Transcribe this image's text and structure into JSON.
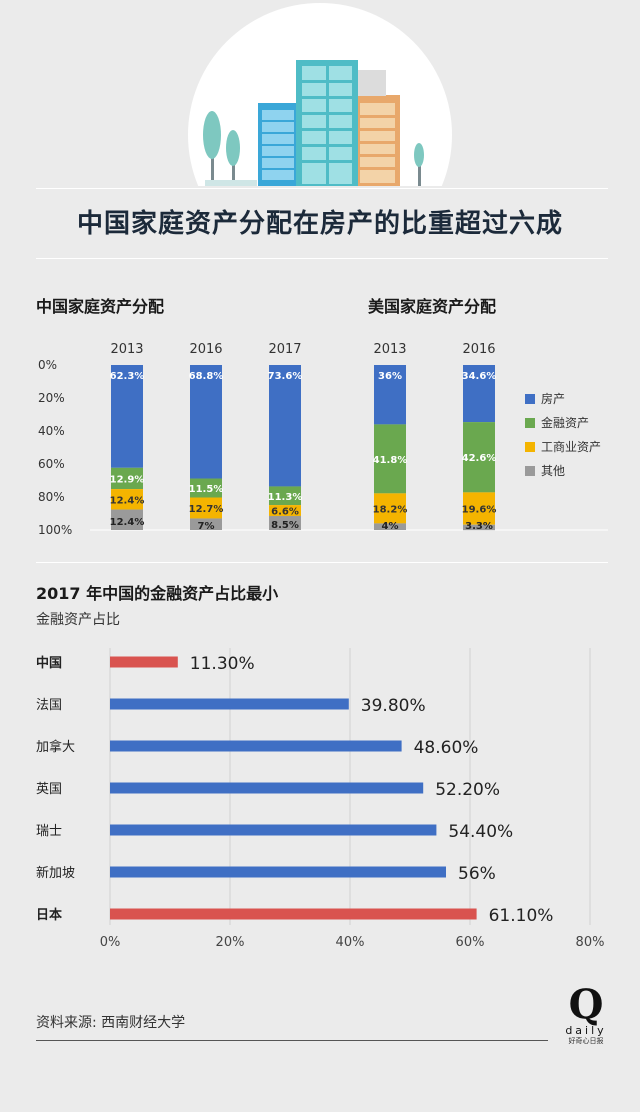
{
  "header": {
    "title": "中国家庭资产分配在房产的比重超过六成"
  },
  "stacked_section": {
    "china_title": "中国家庭资产分配",
    "us_title": "美国家庭资产分配"
  },
  "bar_section": {
    "title": "2017 年中国的金融资产占比最小",
    "subtitle": "金融资产占比"
  },
  "footer": {
    "source": "资料来源: 西南财经大学"
  },
  "logo": {
    "letter": "Q",
    "word": "daily",
    "tagline": "好奇心日报"
  },
  "colors": {
    "house": "#3f6fc4",
    "financial": "#6aa84f",
    "business": "#f4b400",
    "other": "#9a9a9a",
    "highlight": "#d9534f",
    "bar": "#3f6fc4"
  },
  "chart_data": [
    {
      "type": "bar",
      "stacked": true,
      "y_tick_labels": [
        "0%",
        "20%",
        "40%",
        "60%",
        "80%",
        "100%"
      ],
      "ylim": [
        0,
        100
      ],
      "legend_position": "right",
      "legend": [
        "房产",
        "金融资产",
        "工商业资产",
        "其他"
      ],
      "groups": [
        {
          "name": "中国家庭资产分配",
          "categories": [
            "2013",
            "2016",
            "2017"
          ],
          "series": [
            {
              "name": "房产",
              "values": [
                62.3,
                68.8,
                73.6
              ],
              "labels": [
                "62.3%",
                "68.8%",
                "73.6%"
              ]
            },
            {
              "name": "金融资产",
              "values": [
                12.9,
                11.5,
                11.3
              ],
              "labels": [
                "12.9%",
                "11.5%",
                "11.3%"
              ]
            },
            {
              "name": "工商业资产",
              "values": [
                12.4,
                12.7,
                6.6
              ],
              "labels": [
                "12.4%",
                "12.7%",
                "6.6%"
              ]
            },
            {
              "name": "其他",
              "values": [
                12.4,
                7,
                8.5
              ],
              "labels": [
                "12.4%",
                "7%",
                "8.5%"
              ]
            }
          ]
        },
        {
          "name": "美国家庭资产分配",
          "categories": [
            "2013",
            "2016"
          ],
          "series": [
            {
              "name": "房产",
              "values": [
                36,
                34.6
              ],
              "labels": [
                "36%",
                "34.6%"
              ]
            },
            {
              "name": "金融资产",
              "values": [
                41.8,
                42.6
              ],
              "labels": [
                "41.8%",
                "42.6%"
              ]
            },
            {
              "name": "工商业资产",
              "values": [
                18.2,
                19.6
              ],
              "labels": [
                "18.2%",
                "19.6%"
              ]
            },
            {
              "name": "其他",
              "values": [
                4,
                3.3
              ],
              "labels": [
                "4%",
                "3.3%"
              ]
            }
          ]
        }
      ]
    },
    {
      "type": "bar",
      "orientation": "horizontal",
      "title": "2017 年中国的金融资产占比最小",
      "subtitle": "金融资产占比",
      "categories": [
        "中国",
        "法国",
        "加拿大",
        "英国",
        "瑞士",
        "新加坡",
        "日本"
      ],
      "values": [
        11.3,
        39.8,
        48.6,
        52.2,
        54.4,
        56,
        61.1
      ],
      "labels": [
        "11.30%",
        "39.80%",
        "48.60%",
        "52.20%",
        "54.40%",
        "56%",
        "61.10%"
      ],
      "highlighted": [
        "中国",
        "日本"
      ],
      "x_tick_labels": [
        "0%",
        "20%",
        "40%",
        "60%",
        "80%"
      ],
      "xlim": [
        0,
        80
      ],
      "grid": true
    }
  ]
}
